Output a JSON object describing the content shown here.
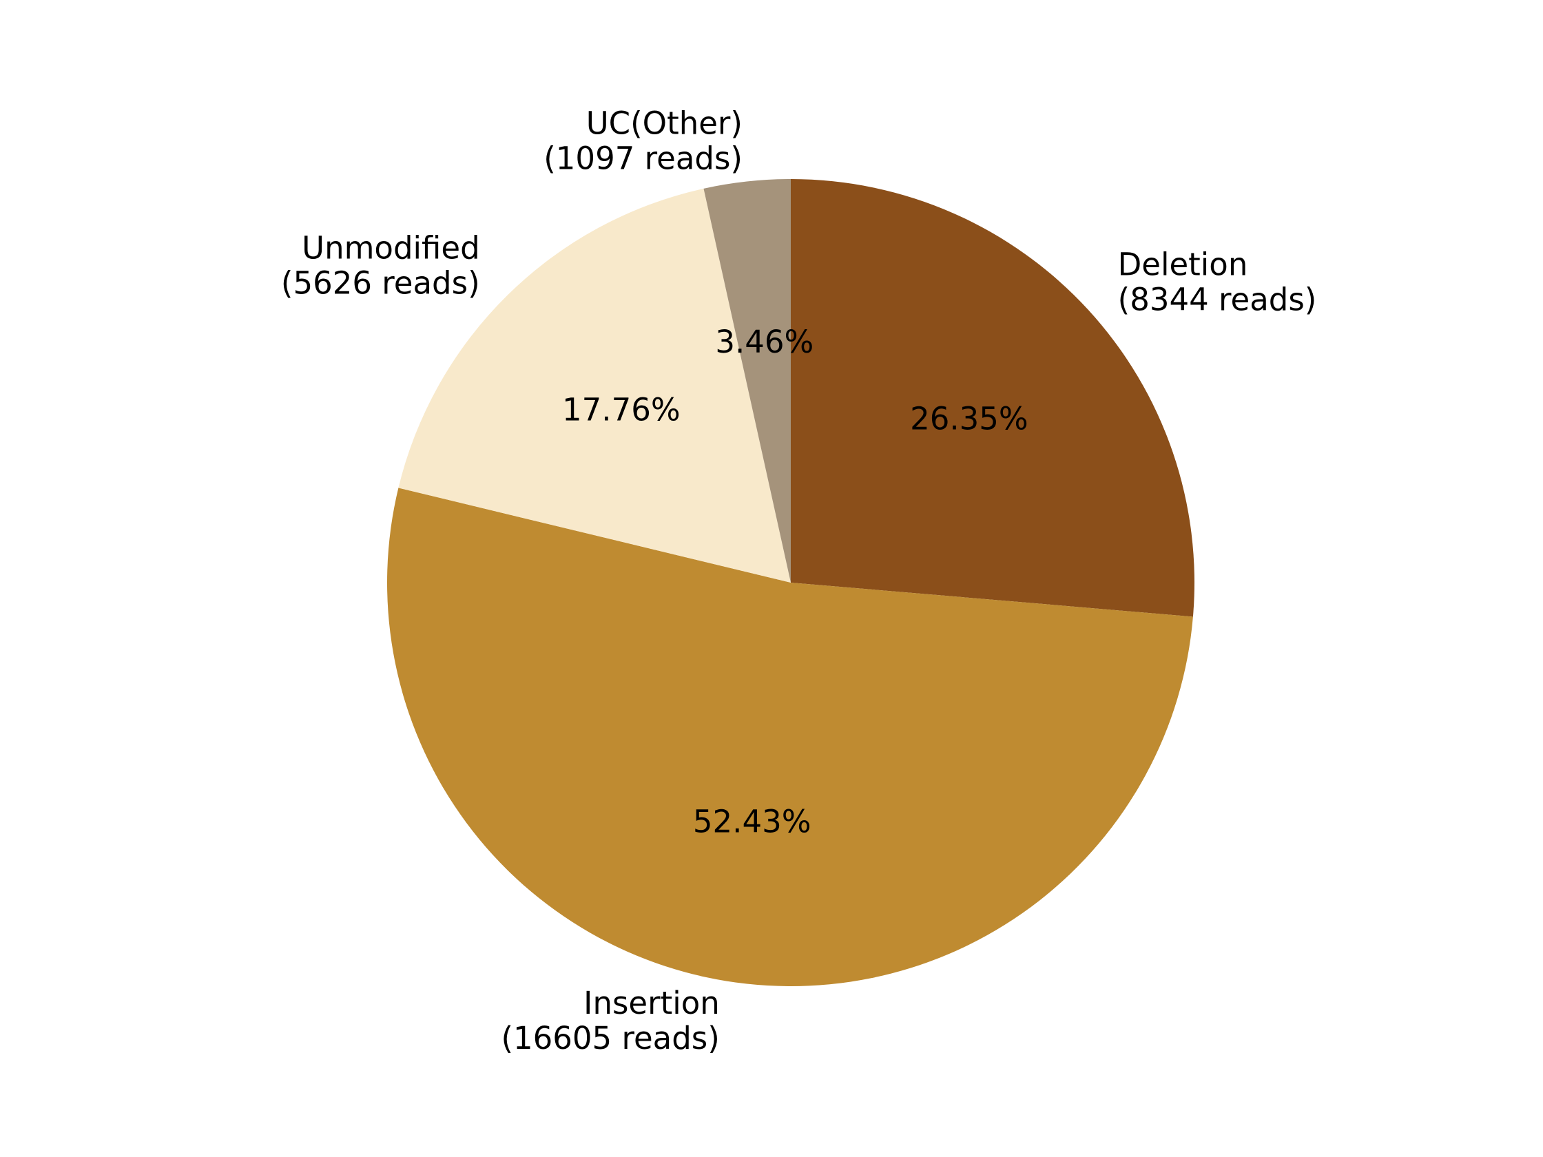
{
  "chart_data": {
    "type": "pie",
    "title": "",
    "start_angle_deg": 90,
    "direction": "clockwise",
    "slices": [
      {
        "category": "Deletion",
        "reads_label": "(8344 reads)",
        "reads": 8344,
        "percent": 26.35,
        "percent_label": "26.35%",
        "color": "#8b4f1a"
      },
      {
        "category": "Insertion",
        "reads_label": "(16605 reads)",
        "reads": 16605,
        "percent": 52.43,
        "percent_label": "52.43%",
        "color": "#bf8b31"
      },
      {
        "category": "Unmodified",
        "reads_label": "(5626 reads)",
        "reads": 5626,
        "percent": 17.76,
        "percent_label": "17.76%",
        "color": "#f8e9cb"
      },
      {
        "category": "UC(Other)",
        "reads_label": "(1097 reads)",
        "reads": 1097,
        "percent": 3.46,
        "percent_label": "3.46%",
        "color": "#a5937b"
      }
    ]
  }
}
